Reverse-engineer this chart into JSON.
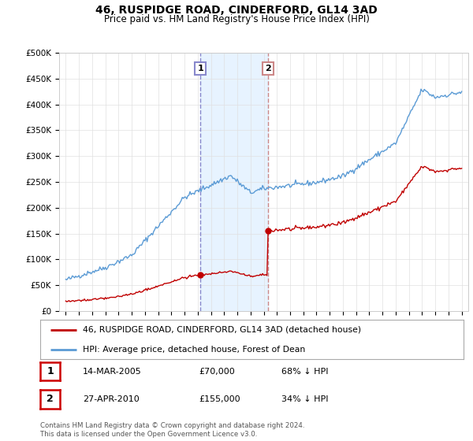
{
  "title": "46, RUSPIDGE ROAD, CINDERFORD, GL14 3AD",
  "subtitle": "Price paid vs. HM Land Registry's House Price Index (HPI)",
  "ylim": [
    0,
    500000
  ],
  "yticks": [
    0,
    50000,
    100000,
    150000,
    200000,
    250000,
    300000,
    350000,
    400000,
    450000,
    500000
  ],
  "ytick_labels": [
    "£0",
    "£50K",
    "£100K",
    "£150K",
    "£200K",
    "£250K",
    "£300K",
    "£350K",
    "£400K",
    "£450K",
    "£500K"
  ],
  "hpi_color": "#5b9bd5",
  "sale_color": "#c00000",
  "sale1_x": 2005.2,
  "sale1_y": 70000,
  "sale2_x": 2010.32,
  "sale2_y": 155000,
  "vline1_color": "#8888cc",
  "vline2_color": "#cc8888",
  "span_color": "#ddeeff",
  "legend_label1": "46, RUSPIDGE ROAD, CINDERFORD, GL14 3AD (detached house)",
  "legend_label2": "HPI: Average price, detached house, Forest of Dean",
  "table_row1": [
    "1",
    "14-MAR-2005",
    "£70,000",
    "68% ↓ HPI"
  ],
  "table_row2": [
    "2",
    "27-APR-2010",
    "£155,000",
    "34% ↓ HPI"
  ],
  "footnote": "Contains HM Land Registry data © Crown copyright and database right 2024.\nThis data is licensed under the Open Government Licence v3.0.",
  "bg_color": "#ffffff",
  "grid_color": "#e0e0e0",
  "xmin": 1994.5,
  "xmax": 2025.5
}
